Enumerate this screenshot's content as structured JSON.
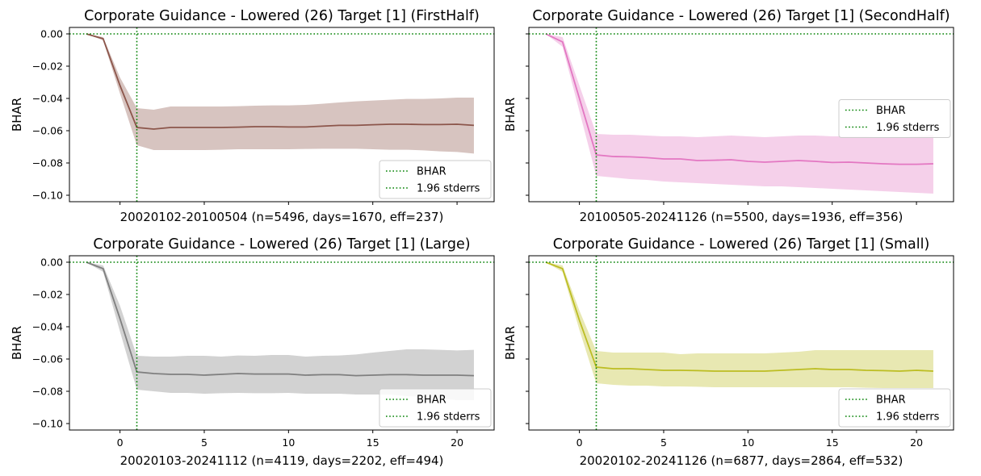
{
  "chart_data": [
    {
      "type": "line",
      "title": "Corporate Guidance - Lowered (26) Target [1] (FirstHalf)",
      "xlabel": "20020102-20100504 (n=5496, days=1670, eff=237)",
      "ylabel": "BHAR",
      "color": "#8c564b",
      "show_xticklabels": false,
      "show_yticklabels": true,
      "xlim": [
        -3,
        22.2
      ],
      "ylim": [
        -0.104,
        0.004
      ],
      "yticks": [
        0.0,
        -0.02,
        -0.04,
        -0.06,
        -0.08,
        -0.1
      ],
      "ytick_labels": [
        "0.00",
        "−0.02",
        "−0.04",
        "−0.06",
        "−0.08",
        "−0.10"
      ],
      "xticks": [
        0,
        5,
        10,
        15,
        20
      ],
      "xtick_labels": [
        "0",
        "5",
        "10",
        "15",
        "20"
      ],
      "x": [
        -2,
        -1,
        0,
        1,
        2,
        3,
        4,
        5,
        6,
        7,
        8,
        9,
        10,
        11,
        12,
        13,
        14,
        15,
        16,
        17,
        18,
        19,
        20,
        21
      ],
      "series": [
        {
          "values": [
            0.0,
            -0.003,
            -0.032,
            -0.058,
            -0.059,
            -0.058,
            -0.058,
            -0.058,
            -0.058,
            -0.0578,
            -0.0575,
            -0.0575,
            -0.0577,
            -0.0577,
            -0.0572,
            -0.0567,
            -0.0567,
            -0.0563,
            -0.056,
            -0.056,
            -0.0562,
            -0.0562,
            -0.056,
            -0.0567
          ]
        }
      ],
      "band": {
        "lower": [
          0.0,
          -0.004,
          -0.037,
          -0.069,
          -0.072,
          -0.072,
          -0.072,
          -0.072,
          -0.0718,
          -0.0715,
          -0.0715,
          -0.0715,
          -0.0715,
          -0.0713,
          -0.0712,
          -0.0712,
          -0.0712,
          -0.0715,
          -0.0718,
          -0.0718,
          -0.0722,
          -0.0728,
          -0.0732,
          -0.0742
        ],
        "upper": [
          0.0,
          -0.002,
          -0.027,
          -0.046,
          -0.047,
          -0.045,
          -0.045,
          -0.045,
          -0.045,
          -0.0448,
          -0.0445,
          -0.0443,
          -0.0443,
          -0.044,
          -0.0433,
          -0.0425,
          -0.0418,
          -0.0413,
          -0.0408,
          -0.0403,
          -0.0403,
          -0.04,
          -0.0395,
          -0.0395
        ]
      },
      "hline": 0.0,
      "vline": 1,
      "legend": {
        "position": "lower-right",
        "entries": [
          "BHAR",
          "1.96 stderrs"
        ]
      }
    },
    {
      "type": "line",
      "title": "Corporate Guidance - Lowered (26) Target [1] (SecondHalf)",
      "xlabel": "20100505-20241126 (n=5500, days=1936, eff=356)",
      "ylabel": "BHAR",
      "color": "#e377c2",
      "show_xticklabels": false,
      "show_yticklabels": false,
      "xlim": [
        -3,
        22.2
      ],
      "ylim": [
        -0.104,
        0.004
      ],
      "yticks": [
        0.0,
        -0.02,
        -0.04,
        -0.06,
        -0.08,
        -0.1
      ],
      "ytick_labels": [
        "0.00",
        "−0.02",
        "−0.04",
        "−0.06",
        "−0.08",
        "−0.10"
      ],
      "xticks": [
        0,
        5,
        10,
        15,
        20
      ],
      "xtick_labels": [
        "0",
        "5",
        "10",
        "15",
        "20"
      ],
      "x": [
        -2,
        -1,
        0,
        1,
        2,
        3,
        4,
        5,
        6,
        7,
        8,
        9,
        10,
        11,
        12,
        13,
        14,
        15,
        16,
        17,
        18,
        19,
        20,
        21
      ],
      "series": [
        {
          "values": [
            0.0,
            -0.005,
            -0.04,
            -0.075,
            -0.076,
            -0.0762,
            -0.0767,
            -0.0775,
            -0.0775,
            -0.0785,
            -0.0783,
            -0.078,
            -0.079,
            -0.0795,
            -0.079,
            -0.0785,
            -0.079,
            -0.0797,
            -0.0795,
            -0.08,
            -0.0805,
            -0.0808,
            -0.0808,
            -0.0805
          ]
        }
      ],
      "band": {
        "lower": [
          0.0,
          -0.008,
          -0.048,
          -0.088,
          -0.089,
          -0.09,
          -0.0905,
          -0.0915,
          -0.092,
          -0.0925,
          -0.093,
          -0.0935,
          -0.094,
          -0.0945,
          -0.0945,
          -0.095,
          -0.0955,
          -0.096,
          -0.0965,
          -0.097,
          -0.0975,
          -0.098,
          -0.0985,
          -0.099
        ],
        "upper": [
          0.0,
          -0.002,
          -0.032,
          -0.062,
          -0.0625,
          -0.0625,
          -0.063,
          -0.0635,
          -0.0635,
          -0.064,
          -0.0635,
          -0.063,
          -0.0635,
          -0.064,
          -0.0635,
          -0.063,
          -0.063,
          -0.0635,
          -0.0635,
          -0.0635,
          -0.064,
          -0.064,
          -0.0635,
          -0.0625
        ]
      },
      "hline": 0.0,
      "vline": 1,
      "legend": {
        "position": "center-right",
        "entries": [
          "BHAR",
          "1.96 stderrs"
        ]
      }
    },
    {
      "type": "line",
      "title": "Corporate Guidance - Lowered (26) Target [1] (Large)",
      "xlabel": "20020103-20241112 (n=4119, days=2202, eff=494)",
      "ylabel": "BHAR",
      "color": "#7f7f7f",
      "show_xticklabels": true,
      "show_yticklabels": true,
      "xlim": [
        -3,
        22.2
      ],
      "ylim": [
        -0.104,
        0.004
      ],
      "yticks": [
        0.0,
        -0.02,
        -0.04,
        -0.06,
        -0.08,
        -0.1
      ],
      "ytick_labels": [
        "0.00",
        "−0.02",
        "−0.04",
        "−0.06",
        "−0.08",
        "−0.10"
      ],
      "xticks": [
        0,
        5,
        10,
        15,
        20
      ],
      "xtick_labels": [
        "0",
        "5",
        "10",
        "15",
        "20"
      ],
      "x": [
        -2,
        -1,
        0,
        1,
        2,
        3,
        4,
        5,
        6,
        7,
        8,
        9,
        10,
        11,
        12,
        13,
        14,
        15,
        16,
        17,
        18,
        19,
        20,
        21
      ],
      "series": [
        {
          "values": [
            0.0,
            -0.004,
            -0.035,
            -0.068,
            -0.069,
            -0.0695,
            -0.0695,
            -0.07,
            -0.0695,
            -0.069,
            -0.0693,
            -0.0693,
            -0.0693,
            -0.07,
            -0.0697,
            -0.0697,
            -0.0703,
            -0.07,
            -0.0697,
            -0.0697,
            -0.07,
            -0.07,
            -0.07,
            -0.0703
          ]
        }
      ],
      "band": {
        "lower": [
          0.0,
          -0.006,
          -0.043,
          -0.079,
          -0.08,
          -0.081,
          -0.081,
          -0.0815,
          -0.0812,
          -0.081,
          -0.0812,
          -0.0812,
          -0.081,
          -0.0815,
          -0.0815,
          -0.0815,
          -0.082,
          -0.082,
          -0.082,
          -0.083,
          -0.0835,
          -0.0845,
          -0.0855,
          -0.0855
        ],
        "upper": [
          0.0,
          -0.002,
          -0.027,
          -0.058,
          -0.0585,
          -0.0585,
          -0.058,
          -0.058,
          -0.0585,
          -0.0578,
          -0.058,
          -0.0575,
          -0.0575,
          -0.0585,
          -0.058,
          -0.0578,
          -0.0572,
          -0.056,
          -0.055,
          -0.054,
          -0.054,
          -0.0543,
          -0.0547,
          -0.0543
        ]
      },
      "hline": 0.0,
      "vline": 1,
      "legend": {
        "position": "lower-right",
        "entries": [
          "BHAR",
          "1.96 stderrs"
        ]
      }
    },
    {
      "type": "line",
      "title": "Corporate Guidance - Lowered (26) Target [1] (Small)",
      "xlabel": "20020102-20241126 (n=6877, days=2864, eff=532)",
      "ylabel": "BHAR",
      "color": "#bcbd22",
      "show_xticklabels": true,
      "show_yticklabels": false,
      "xlim": [
        -3,
        22.2
      ],
      "ylim": [
        -0.104,
        0.004
      ],
      "yticks": [
        0.0,
        -0.02,
        -0.04,
        -0.06,
        -0.08,
        -0.1
      ],
      "ytick_labels": [
        "0.00",
        "−0.02",
        "−0.04",
        "−0.06",
        "−0.08",
        "−0.10"
      ],
      "xticks": [
        0,
        5,
        10,
        15,
        20
      ],
      "xtick_labels": [
        "0",
        "5",
        "10",
        "15",
        "20"
      ],
      "x": [
        -2,
        -1,
        0,
        1,
        2,
        3,
        4,
        5,
        6,
        7,
        8,
        9,
        10,
        11,
        12,
        13,
        14,
        15,
        16,
        17,
        18,
        19,
        20,
        21
      ],
      "series": [
        {
          "values": [
            0.0,
            -0.004,
            -0.036,
            -0.065,
            -0.066,
            -0.066,
            -0.0665,
            -0.067,
            -0.067,
            -0.0672,
            -0.0675,
            -0.0675,
            -0.0675,
            -0.0675,
            -0.067,
            -0.0665,
            -0.066,
            -0.0665,
            -0.0665,
            -0.067,
            -0.0672,
            -0.0675,
            -0.067,
            -0.0675
          ]
        }
      ],
      "band": {
        "lower": [
          0.0,
          -0.006,
          -0.042,
          -0.075,
          -0.076,
          -0.0765,
          -0.0765,
          -0.077,
          -0.077,
          -0.0772,
          -0.0775,
          -0.0775,
          -0.0775,
          -0.0775,
          -0.0775,
          -0.0775,
          -0.0775,
          -0.0775,
          -0.0775,
          -0.0778,
          -0.078,
          -0.078,
          -0.078,
          -0.078
        ],
        "upper": [
          0.0,
          -0.002,
          -0.03,
          -0.055,
          -0.056,
          -0.056,
          -0.056,
          -0.056,
          -0.057,
          -0.0565,
          -0.0565,
          -0.0565,
          -0.0565,
          -0.0565,
          -0.056,
          -0.0555,
          -0.0545,
          -0.0545,
          -0.0545,
          -0.0545,
          -0.0545,
          -0.0545,
          -0.0545,
          -0.0545
        ]
      },
      "hline": 0.0,
      "vline": 1,
      "legend": {
        "position": "lower-right",
        "entries": [
          "BHAR",
          "1.96 stderrs"
        ]
      }
    }
  ]
}
